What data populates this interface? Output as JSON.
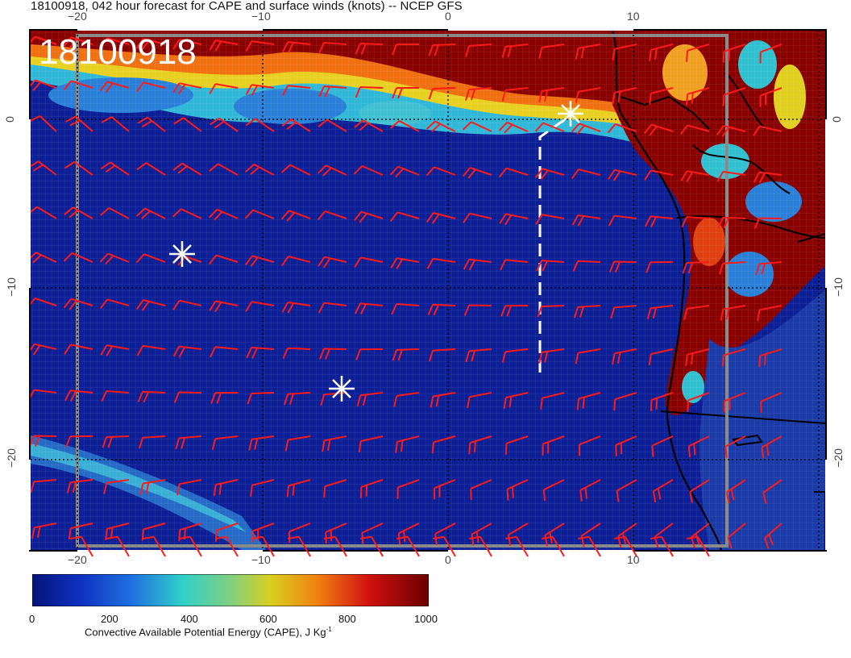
{
  "title": "18100918, 042 hour forecast for CAPE and surface winds (knots) -- NCEP GFS",
  "date_stamp": "18100918",
  "map": {
    "lon_ticks_top": [
      "−20",
      "−10",
      "0",
      "10"
    ],
    "lon_ticks_bottom": [
      "−20",
      "−10",
      "0",
      "10"
    ],
    "lat_ticks_left": [
      "0",
      "−10",
      "−20"
    ],
    "lat_ticks_right": [
      "0",
      "−10",
      "−20"
    ],
    "field": "CAPE",
    "overlay": "surface wind barbs",
    "colors": {
      "low": "#0a1a8c",
      "mid": "#30c8c8",
      "high": "#7a0000",
      "barb": "#ff1a1a",
      "coast": "#000000"
    },
    "markers": [
      "asterisk-1",
      "asterisk-2",
      "asterisk-3"
    ]
  },
  "colorbar": {
    "labels": [
      "0",
      "200",
      "400",
      "600",
      "800",
      "1000"
    ],
    "title": "Convective Available Potential Energy (CAPE), J Kg",
    "title_sup": "-1"
  }
}
